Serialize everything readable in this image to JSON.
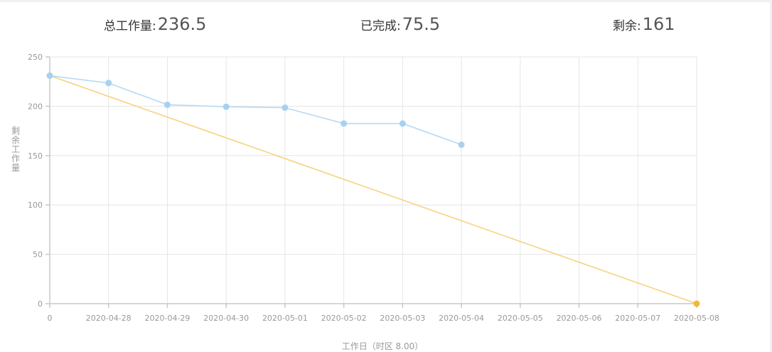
{
  "summary": {
    "total_label": "总工作量:",
    "total_value": "236.5",
    "done_label": "已完成:",
    "done_value": "75.5",
    "remain_label": "剩余:",
    "remain_value": "161"
  },
  "chart_data": {
    "type": "line",
    "title": "",
    "xlabel": "工作日（时区 8.00）",
    "ylabel": "剩余工作量",
    "categories": [
      "0",
      "2020-04-28",
      "2020-04-29",
      "2020-04-30",
      "2020-05-01",
      "2020-05-02",
      "2020-05-03",
      "2020-05-04",
      "2020-05-05",
      "2020-05-06",
      "2020-05-07",
      "2020-05-08"
    ],
    "ylim": [
      0,
      250
    ],
    "yticks": [
      0,
      50,
      100,
      150,
      200,
      250
    ],
    "grid": true,
    "series": [
      {
        "values": [
          231,
          223.5,
          201.5,
          199.5,
          198.5,
          182.5,
          182.5,
          161,
          null,
          null,
          null,
          null
        ],
        "color": "#b7d9f3",
        "marker_color": "#a8d1f0"
      },
      {
        "values": [
          231,
          null,
          null,
          null,
          null,
          null,
          null,
          null,
          null,
          null,
          null,
          0
        ],
        "color": "#f5d27f",
        "marker_color": "#f0b93a"
      }
    ]
  }
}
